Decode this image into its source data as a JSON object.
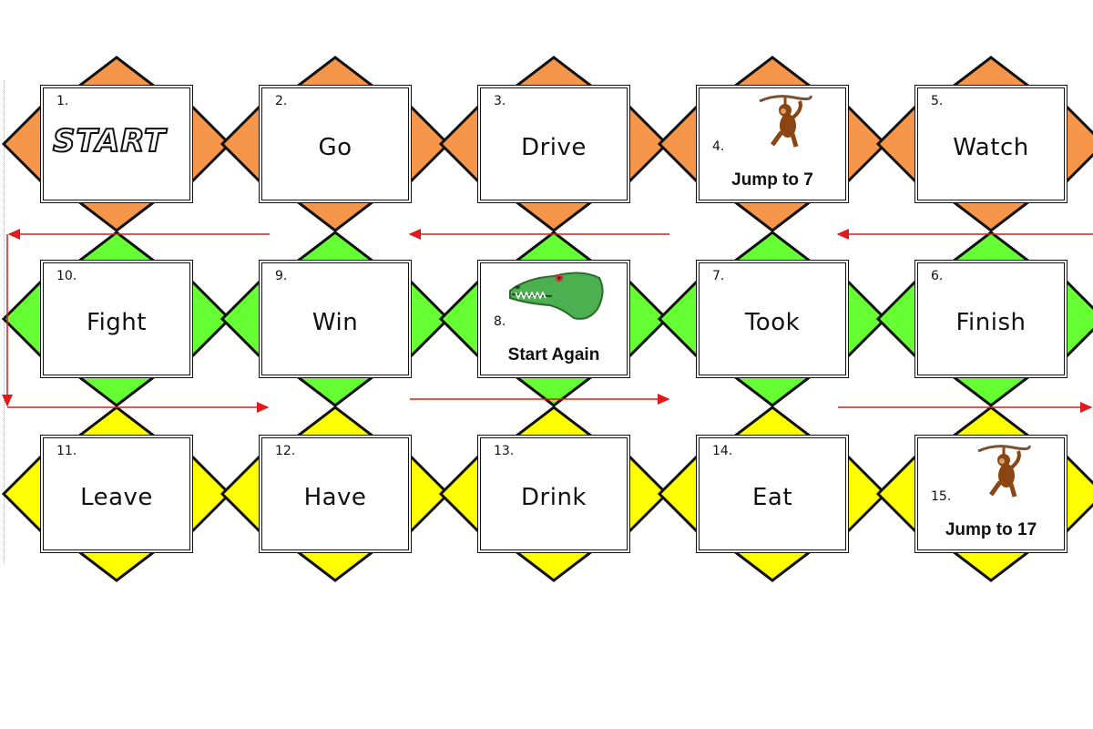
{
  "board": {
    "colors": {
      "row1": "#F5964A",
      "row2": "#66FF33",
      "row3": "#FFFF00",
      "outline": "#111111",
      "arrow": "#E11B1B"
    },
    "squares": [
      {
        "num": "1.",
        "logo": "START",
        "row": 1,
        "col": 1
      },
      {
        "num": "2.",
        "word": "Go",
        "row": 1,
        "col": 2
      },
      {
        "num": "3.",
        "word": "Drive",
        "row": 1,
        "col": 3
      },
      {
        "num": "4.",
        "caption": "Jump to 7",
        "icon": "monkey-icon",
        "row": 1,
        "col": 4
      },
      {
        "num": "5.",
        "word": "Watch",
        "row": 1,
        "col": 5
      },
      {
        "num": "10.",
        "word": "Fight",
        "row": 2,
        "col": 1
      },
      {
        "num": "9.",
        "word": "Win",
        "row": 2,
        "col": 2
      },
      {
        "num": "8.",
        "caption": "Start Again",
        "icon": "crocodile-icon",
        "row": 2,
        "col": 3
      },
      {
        "num": "7.",
        "word": "Took",
        "row": 2,
        "col": 4
      },
      {
        "num": "6.",
        "word": "Finish",
        "row": 2,
        "col": 5
      },
      {
        "num": "11.",
        "word": "Leave",
        "row": 3,
        "col": 1
      },
      {
        "num": "12.",
        "word": "Have",
        "row": 3,
        "col": 2
      },
      {
        "num": "13.",
        "word": "Drink",
        "row": 3,
        "col": 3
      },
      {
        "num": "14.",
        "word": "Eat",
        "row": 3,
        "col": 4
      },
      {
        "num": "15.",
        "caption": "Jump to 17",
        "icon": "monkey-icon",
        "row": 3,
        "col": 5
      }
    ]
  }
}
